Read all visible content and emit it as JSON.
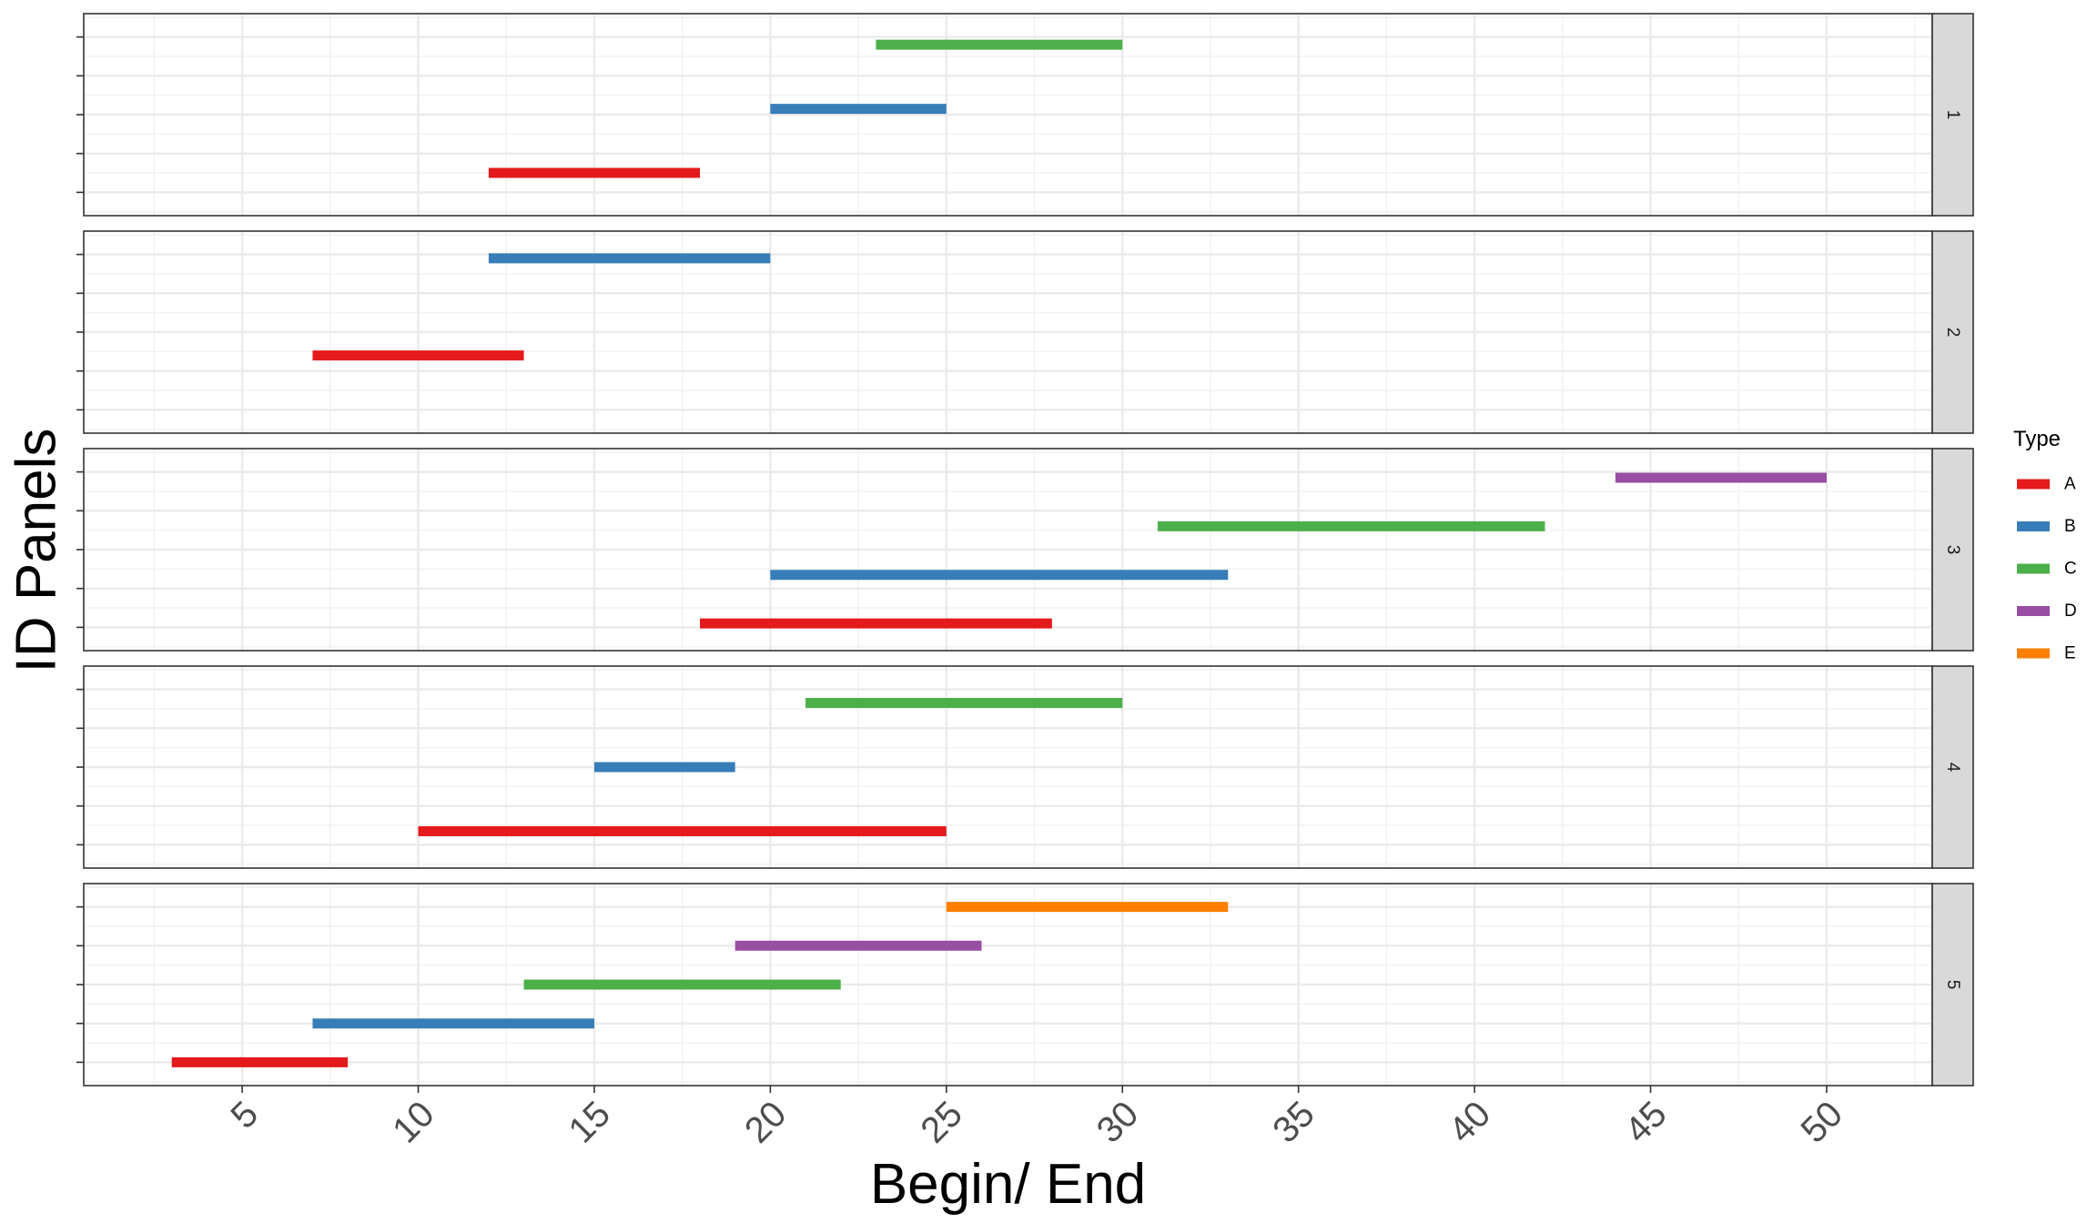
{
  "chart_data": {
    "type": "faceted-segment",
    "xlabel": "Begin/ End",
    "ylabel": "ID Panels",
    "xlim": [
      0.5,
      53
    ],
    "x_ticks": [
      5,
      10,
      15,
      20,
      25,
      30,
      35,
      40,
      45,
      50
    ],
    "grid": true,
    "facet_strip_position": "right",
    "legend": {
      "title": "Type",
      "position": "right",
      "entries": [
        {
          "label": "A",
          "color": "#E41A1C"
        },
        {
          "label": "B",
          "color": "#377EB8"
        },
        {
          "label": "C",
          "color": "#4DAF4A"
        },
        {
          "label": "D",
          "color": "#984EA3"
        },
        {
          "label": "E",
          "color": "#FF7F00"
        }
      ]
    },
    "panels": [
      {
        "label": "1",
        "ylim": [
          0.4,
          5.6
        ],
        "y_ticks": [
          1,
          2,
          3,
          4,
          5
        ],
        "segments": [
          {
            "type": "A",
            "begin": 12,
            "end": 18,
            "y": 1.5
          },
          {
            "type": "B",
            "begin": 20,
            "end": 25,
            "y": 3.15
          },
          {
            "type": "C",
            "begin": 23,
            "end": 30,
            "y": 4.8
          }
        ]
      },
      {
        "label": "2",
        "ylim": [
          0.4,
          5.6
        ],
        "y_ticks": [
          1,
          2,
          3,
          4,
          5
        ],
        "segments": [
          {
            "type": "A",
            "begin": 7,
            "end": 13,
            "y": 2.4
          },
          {
            "type": "B",
            "begin": 12,
            "end": 20,
            "y": 4.9
          }
        ]
      },
      {
        "label": "3",
        "ylim": [
          0.4,
          5.6
        ],
        "y_ticks": [
          1,
          2,
          3,
          4,
          5
        ],
        "segments": [
          {
            "type": "A",
            "begin": 18,
            "end": 28,
            "y": 1.1
          },
          {
            "type": "B",
            "begin": 20,
            "end": 33,
            "y": 2.35
          },
          {
            "type": "C",
            "begin": 31,
            "end": 42,
            "y": 3.6
          },
          {
            "type": "D",
            "begin": 44,
            "end": 50,
            "y": 4.85
          }
        ]
      },
      {
        "label": "4",
        "ylim": [
          0.4,
          5.6
        ],
        "y_ticks": [
          1,
          2,
          3,
          4,
          5
        ],
        "segments": [
          {
            "type": "A",
            "begin": 10,
            "end": 25,
            "y": 1.35
          },
          {
            "type": "B",
            "begin": 15,
            "end": 19,
            "y": 3.0
          },
          {
            "type": "C",
            "begin": 21,
            "end": 30,
            "y": 4.65
          }
        ]
      },
      {
        "label": "5",
        "ylim": [
          0.4,
          5.6
        ],
        "y_ticks": [
          1,
          2,
          3,
          4,
          5
        ],
        "segments": [
          {
            "type": "A",
            "begin": 3,
            "end": 8,
            "y": 1.0
          },
          {
            "type": "B",
            "begin": 7,
            "end": 15,
            "y": 2.0
          },
          {
            "type": "C",
            "begin": 13,
            "end": 22,
            "y": 3.0
          },
          {
            "type": "D",
            "begin": 19,
            "end": 26,
            "y": 4.0
          },
          {
            "type": "E",
            "begin": 25,
            "end": 33,
            "y": 5.0
          }
        ]
      }
    ]
  }
}
